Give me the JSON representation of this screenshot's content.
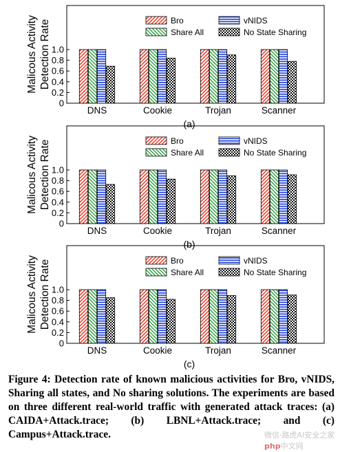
{
  "chart_data": [
    {
      "type": "bar",
      "sublabel": "(a)",
      "ylabel": [
        "Malicous Activity",
        "Detection Rate"
      ],
      "ylim": [
        0,
        1.0
      ],
      "yticks": [
        "0",
        "0.2",
        "0.4",
        "0.6",
        "0.8",
        "1.0"
      ],
      "legend_position": "top-right",
      "categories": [
        "DNS",
        "Cookie",
        "Trojan",
        "Scanner"
      ],
      "series": [
        {
          "name": "Bro",
          "values": [
            1.0,
            1.0,
            1.0,
            1.0
          ]
        },
        {
          "name": "Share All",
          "values": [
            1.0,
            1.0,
            1.0,
            1.0
          ]
        },
        {
          "name": "vNIDS",
          "values": [
            1.0,
            1.0,
            1.0,
            1.0
          ]
        },
        {
          "name": "No State Sharing",
          "values": [
            0.69,
            0.84,
            0.9,
            0.78
          ]
        }
      ]
    },
    {
      "type": "bar",
      "sublabel": "(b)",
      "ylabel": [
        "Malicous Activity",
        "Detection Rate"
      ],
      "ylim": [
        0,
        1.0
      ],
      "yticks": [
        "0",
        "0.2",
        "0.4",
        "0.6",
        "0.8",
        "1.0"
      ],
      "legend_position": "top-right",
      "categories": [
        "DNS",
        "Cookie",
        "Trojan",
        "Scanner"
      ],
      "series": [
        {
          "name": "Bro",
          "values": [
            1.0,
            1.0,
            1.0,
            1.0
          ]
        },
        {
          "name": "Share All",
          "values": [
            1.0,
            1.0,
            1.0,
            1.0
          ]
        },
        {
          "name": "vNIDS",
          "values": [
            1.0,
            1.0,
            1.0,
            1.0
          ]
        },
        {
          "name": "No State Sharing",
          "values": [
            0.73,
            0.83,
            0.89,
            0.91
          ]
        }
      ]
    },
    {
      "type": "bar",
      "sublabel": "(c)",
      "ylabel": [
        "Malicous Activity",
        "Detection Rate"
      ],
      "ylim": [
        0,
        1.0
      ],
      "yticks": [
        "0",
        "0.2",
        "0.4",
        "0.6",
        "0.8",
        "1.0"
      ],
      "legend_position": "top-right",
      "categories": [
        "DNS",
        "Cookie",
        "Trojan",
        "Scanner"
      ],
      "series": [
        {
          "name": "Bro",
          "values": [
            1.0,
            1.0,
            1.0,
            1.0
          ]
        },
        {
          "name": "Share All",
          "values": [
            1.0,
            1.0,
            1.0,
            1.0
          ]
        },
        {
          "name": "vNIDS",
          "values": [
            1.0,
            1.0,
            1.0,
            1.0
          ]
        },
        {
          "name": "No State Sharing",
          "values": [
            0.85,
            0.82,
            0.89,
            0.9
          ]
        }
      ]
    }
  ],
  "series_style": [
    {
      "color": "#e8301e",
      "pattern": "diag-right"
    },
    {
      "color": "#2a9e3a",
      "pattern": "diag-left"
    },
    {
      "color": "#1f3fd6",
      "pattern": "horizontal"
    },
    {
      "color": "#000000",
      "pattern": "checker"
    }
  ],
  "caption": "Figure 4: Detection rate of known malicious activities for Bro, vNIDS, Sharing all states, and No sharing solutions. The experiments are based on three different real-world traffic with generated attack traces: (a) CAIDA+Attack.trace; (b) LBNL+Attack.trace; and (c) Campus+Attack.trace.",
  "watermark": {
    "text": "微信·路虎AI安全之家",
    "brand": "php",
    "suffix": "中文网"
  }
}
